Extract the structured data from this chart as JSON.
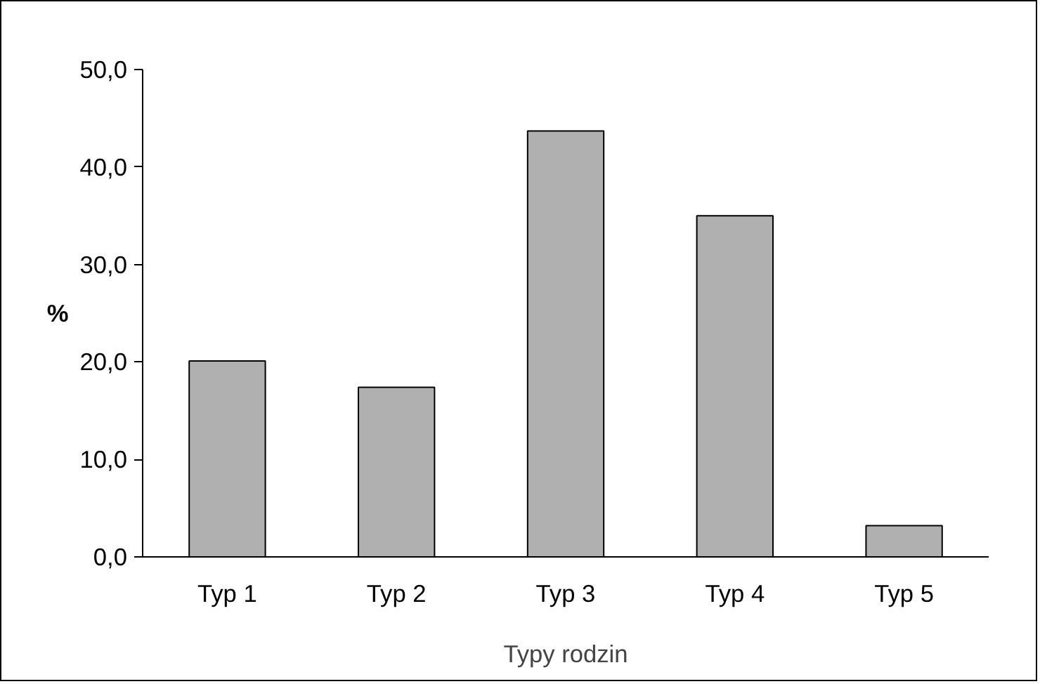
{
  "chart_data": {
    "type": "bar",
    "ylabel": "%",
    "xlabel": "Typy rodzin",
    "categories": [
      "Typ 1",
      "Typ 2",
      "Typ 3",
      "Typ 4",
      "Typ 5"
    ],
    "values": [
      20.1,
      17.4,
      43.7,
      35.0,
      3.2
    ],
    "color": "#b0b0b0",
    "ylim": [
      0,
      50
    ],
    "yticks": [
      {
        "value": 0,
        "label": "0,0"
      },
      {
        "value": 10,
        "label": "10,0"
      },
      {
        "value": 20,
        "label": "20,0"
      },
      {
        "value": 30,
        "label": "30,0"
      },
      {
        "value": 40,
        "label": "40,0"
      },
      {
        "value": 50,
        "label": "50,0"
      }
    ],
    "grid": false
  }
}
